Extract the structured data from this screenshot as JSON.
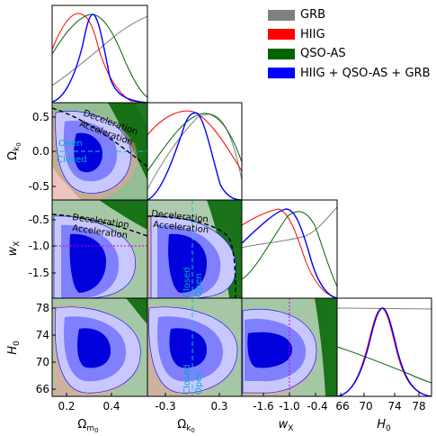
{
  "chart_data": {
    "type": "triangle",
    "colors": {
      "GRB": "#808080",
      "HIIG": "#ff0000",
      "QSO-AS": "#006400",
      "HIIG + QSO-AS + GRB": "#0000ff"
    },
    "legend": {
      "placement": "top-right",
      "entries": [
        "GRB",
        "HIIG",
        "QSO-AS",
        "HIIG + QSO-AS + GRB"
      ]
    },
    "parameters": [
      {
        "label": "Ω_m0",
        "display": "Ωm0",
        "ticks": [
          "0.4",
          "0.2"
        ]
      },
      {
        "label": "Ω_k0",
        "display": "Ωk0",
        "ticks": [
          "-0.3",
          "0.3"
        ]
      },
      {
        "label": "w_X",
        "display": "wX",
        "ticks": [
          "-1.6",
          "-1.0",
          "-0.4"
        ]
      },
      {
        "label": "H_0",
        "display": "H0",
        "ticks": [
          "66",
          "70",
          "74",
          "78"
        ]
      }
    ],
    "axis_titles": {
      "x": [
        "Ωm0",
        "Ωk0",
        "wX",
        "H0"
      ],
      "y": [
        "Ωk0",
        "wX",
        "H0"
      ]
    },
    "ticks": {
      "omega_m": [
        "0.2",
        "0.4"
      ],
      "omega_k_x": [
        "-0.3",
        "0.3"
      ],
      "omega_k_y": [
        "0.5",
        "0.0",
        "-0.5"
      ],
      "wx_x": [
        "-1.6",
        "-1.0",
        "-0.4"
      ],
      "wx_y": [
        "-0.5",
        "-1.0",
        "-1.5"
      ],
      "h0_x": [
        "66",
        "70",
        "74",
        "78"
      ],
      "h0_y": [
        "78",
        "74",
        "70",
        "66"
      ]
    },
    "annotations": {
      "open": "Open",
      "closed": "Closed",
      "deceleration": "Deceleration",
      "acceleration": "Acceleration"
    },
    "marginals": {
      "omega_m": {
        "GRB_peak": null,
        "HIIG_peak": 0.25,
        "QSOAS_peak": 0.3,
        "joint_peak": 0.3
      },
      "omega_k": {
        "joint_peak": -0.05
      },
      "w_x": {
        "HIIG_peak": -1.1,
        "QSOAS_peak": -0.9,
        "joint_peak": -1.0
      },
      "H_0": {
        "joint_peak": 71.5,
        "HIIG_peak": 71.5
      }
    }
  }
}
